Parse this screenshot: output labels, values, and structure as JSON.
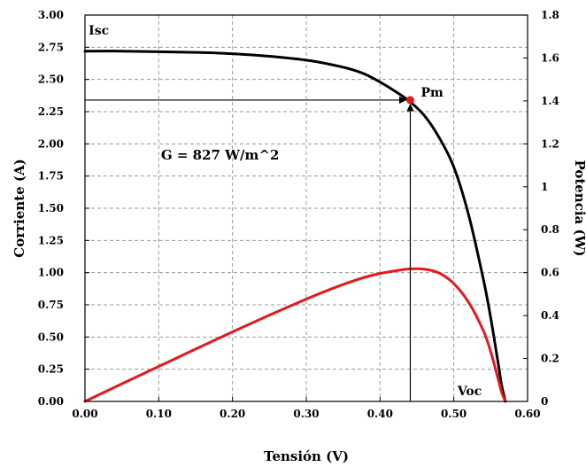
{
  "chart_data": {
    "type": "line",
    "title": "",
    "xlabel": "Tensión (V)",
    "ylabel_left": "Corriente (A)",
    "ylabel_right": "Potencia (W)",
    "xlim": [
      0,
      0.6
    ],
    "ylim_left": [
      0,
      3.0
    ],
    "ylim_right": [
      0,
      1.8
    ],
    "x_ticks": [
      "0.00",
      "0.10",
      "0.20",
      "0.30",
      "0.40",
      "0.50",
      "0.60"
    ],
    "y_left_ticks": [
      "0.00",
      "0.25",
      "0.50",
      "0.75",
      "1.00",
      "1.25",
      "1.50",
      "1.75",
      "2.00",
      "2.25",
      "2.50",
      "2.75",
      "3.00"
    ],
    "y_right_ticks": [
      "0",
      "0.2",
      "0.4",
      "0.6",
      "0.8",
      "1",
      "1.2",
      "1.4",
      "1.6",
      "1.8"
    ],
    "grid": true,
    "series": [
      {
        "axis": "left",
        "color": "#000000",
        "x": [
          0.0,
          0.05,
          0.1,
          0.15,
          0.2,
          0.25,
          0.3,
          0.33,
          0.36,
          0.38,
          0.4,
          0.42,
          0.44,
          0.46,
          0.48,
          0.5,
          0.52,
          0.54,
          0.55,
          0.56,
          0.565,
          0.57
        ],
        "y": [
          2.72,
          2.72,
          2.715,
          2.71,
          2.7,
          2.68,
          2.65,
          2.62,
          2.58,
          2.54,
          2.48,
          2.41,
          2.33,
          2.22,
          2.05,
          1.82,
          1.45,
          0.95,
          0.65,
          0.3,
          0.12,
          0.0
        ]
      },
      {
        "axis": "right",
        "color": "#e31a1c",
        "x": [
          0.0,
          0.05,
          0.1,
          0.15,
          0.2,
          0.25,
          0.3,
          0.33,
          0.36,
          0.38,
          0.4,
          0.42,
          0.44,
          0.46,
          0.48,
          0.5,
          0.52,
          0.54,
          0.55,
          0.56,
          0.565,
          0.57
        ],
        "y": [
          0.0,
          0.082,
          0.163,
          0.244,
          0.324,
          0.402,
          0.477,
          0.519,
          0.557,
          0.579,
          0.596,
          0.608,
          0.617,
          0.616,
          0.598,
          0.549,
          0.462,
          0.33,
          0.232,
          0.106,
          0.041,
          0.0
        ]
      }
    ],
    "annotations": {
      "isc": "Isc",
      "pm": "Pm",
      "voc": "Voc",
      "irradiance": "G = 827 W/m^2"
    },
    "mpp": {
      "x": 0.441,
      "y_current": 2.34,
      "color": "#e31a1c"
    }
  }
}
